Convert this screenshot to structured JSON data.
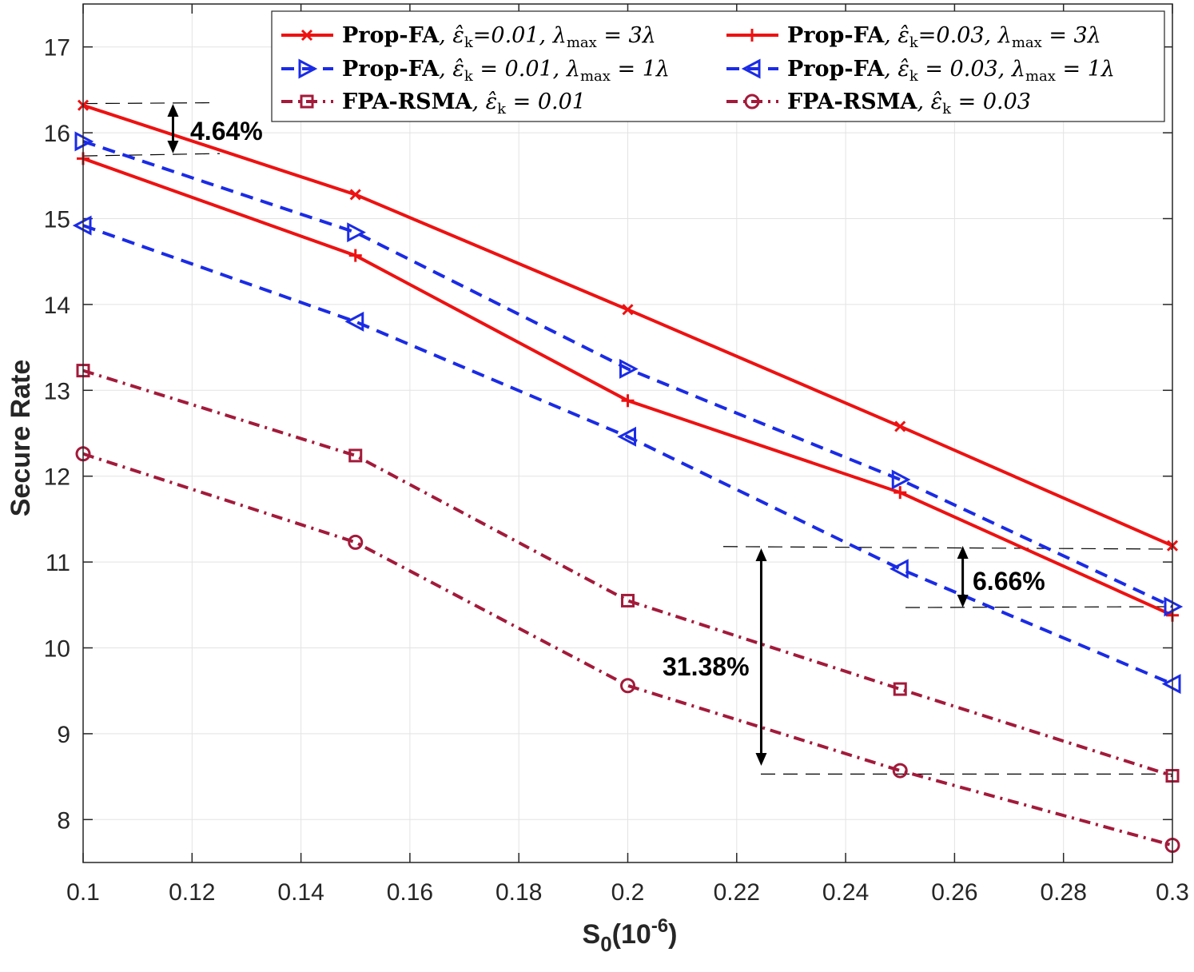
{
  "chart_data": {
    "type": "line",
    "title": "",
    "xlabel": "S0(10-6)",
    "xlabel_parts": {
      "base": "S",
      "sub": "0",
      "open": "(10",
      "sup": "-6",
      "close": ")"
    },
    "ylabel": "Secure Rate",
    "xlim": [
      0.1,
      0.3
    ],
    "ylim": [
      7.5,
      17.5
    ],
    "grid": true,
    "legend_position": "top-right",
    "x": [
      0.1,
      0.15,
      0.2,
      0.25,
      0.3
    ],
    "x_tick_labels": [
      "0.1",
      "0.12",
      "0.14",
      "0.16",
      "0.18",
      "0.2",
      "0.22",
      "0.24",
      "0.26",
      "0.28",
      "0.3"
    ],
    "y_tick_labels": [
      "8",
      "9",
      "10",
      "11",
      "12",
      "13",
      "14",
      "15",
      "16",
      "17"
    ],
    "series": [
      {
        "name": "Prop-FA",
        "eps": "0.01",
        "lambda": "3",
        "values": [
          16.32,
          15.28,
          13.94,
          12.58,
          11.19
        ],
        "color": "#ee1111",
        "dash": "solid",
        "marker": "x"
      },
      {
        "name": "Prop-FA",
        "eps": "0.03",
        "lambda": "3",
        "values": [
          15.7,
          14.57,
          12.88,
          11.81,
          10.38
        ],
        "color": "#ee1111",
        "dash": "solid",
        "marker": "plus"
      },
      {
        "name": "Prop-FA",
        "eps": "0.01",
        "lambda": "1",
        "values": [
          15.9,
          14.84,
          13.25,
          11.96,
          10.48
        ],
        "color": "#1a2be6",
        "dash": "dashed",
        "marker": "triangle-right"
      },
      {
        "name": "Prop-FA",
        "eps": "0.03",
        "lambda": "1",
        "values": [
          14.92,
          13.8,
          12.46,
          10.92,
          9.58
        ],
        "color": "#1a2be6",
        "dash": "dashed",
        "marker": "triangle-left"
      },
      {
        "name": "FPA-RSMA",
        "eps": "0.01",
        "values": [
          13.23,
          12.24,
          10.55,
          9.52,
          8.51
        ],
        "color": "#a31a3a",
        "dash": "dashdot",
        "marker": "square"
      },
      {
        "name": "FPA-RSMA",
        "eps": "0.03",
        "values": [
          12.26,
          11.23,
          9.56,
          8.57,
          7.7
        ],
        "color": "#a31a3a",
        "dash": "dashdot",
        "marker": "circle"
      }
    ],
    "annotations": [
      {
        "text": "4.64%",
        "x_from": 0.1,
        "x_to": 0.123,
        "y_top": 16.34,
        "y_bottom": 15.73,
        "arrow_x": 0.1165
      },
      {
        "text": "6.66%",
        "x_from": 0.25,
        "x_to": 0.3,
        "y_top": 11.15,
        "y_bottom": 10.48,
        "arrow_x": 0.2615
      },
      {
        "text": "31.38%",
        "x_from": 0.2235,
        "x_to": 0.3,
        "y_top": 11.18,
        "y_bottom": 8.53,
        "arrow_x": 0.2245
      }
    ]
  }
}
